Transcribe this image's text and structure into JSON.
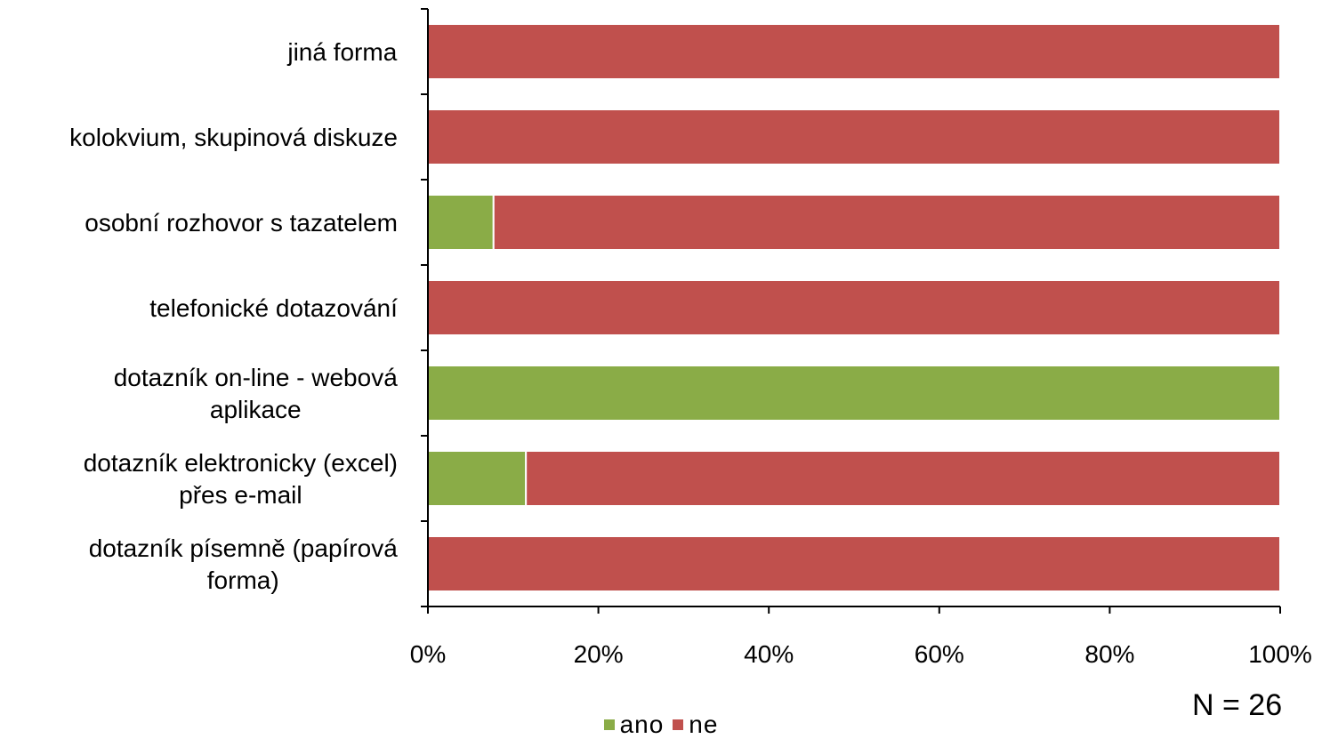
{
  "chart_data": {
    "type": "bar",
    "orientation": "horizontal",
    "stacked": "percent",
    "categories": [
      "jiná forma",
      "kolokvium, skupinová diskuze",
      "osobní rozhovor s tazatelem",
      "telefonické dotazování",
      "dotazník on-line - webová aplikace",
      "dotazník elektronicky (excel) přes e-mail",
      "dotazník písemně (papírová forma)"
    ],
    "category_lines": [
      [
        "jiná forma"
      ],
      [
        "kolokvium, skupinová diskuze"
      ],
      [
        "osobní rozhovor s tazatelem"
      ],
      [
        "telefonické dotazování"
      ],
      [
        "dotazník on-line - webová",
        "aplikace"
      ],
      [
        "dotazník elektronicky (excel)",
        "přes e-mail"
      ],
      [
        "dotazník písemně (papírová",
        "forma)"
      ]
    ],
    "series": [
      {
        "name": "ano",
        "color": "#8aac47",
        "values": [
          0,
          0,
          7.7,
          0,
          100,
          11.5,
          0
        ]
      },
      {
        "name": "ne",
        "color": "#c0504d",
        "values": [
          100,
          100,
          92.3,
          100,
          0,
          88.5,
          100
        ]
      }
    ],
    "xlim": [
      0,
      100
    ],
    "x_ticks": [
      "0%",
      "20%",
      "40%",
      "60%",
      "80%",
      "100%"
    ],
    "grid": false,
    "legend_position": "bottom"
  },
  "note": "N = 26"
}
